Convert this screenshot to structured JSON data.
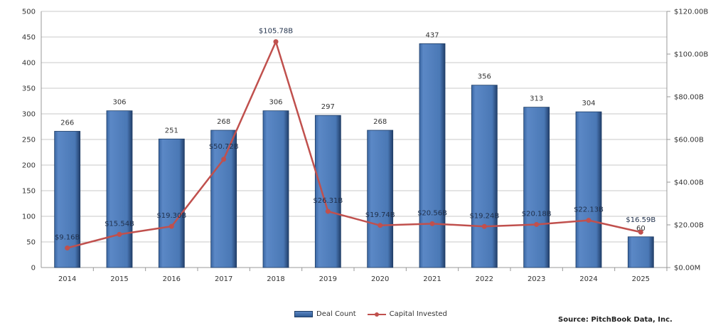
{
  "chart_data": {
    "type": "bar+line",
    "categories": [
      "2014",
      "2015",
      "2016",
      "2017",
      "2018",
      "2019",
      "2020",
      "2021",
      "2022",
      "2023",
      "2024",
      "2025"
    ],
    "series": [
      {
        "name": "Deal Count",
        "type": "bar",
        "axis": "left",
        "values": [
          266,
          306,
          251,
          268,
          306,
          297,
          268,
          437,
          356,
          313,
          304,
          60
        ],
        "labels": [
          "266",
          "306",
          "251",
          "268",
          "306",
          "297",
          "268",
          "437",
          "356",
          "313",
          "304",
          "60"
        ],
        "color": "#4a78b5"
      },
      {
        "name": "Capital Invested",
        "type": "line",
        "axis": "right",
        "values": [
          9.16,
          15.54,
          19.3,
          50.72,
          105.78,
          26.31,
          19.74,
          20.56,
          19.24,
          20.18,
          22.13,
          16.59
        ],
        "labels": [
          "$9.16B",
          "$15.54B",
          "$19.30B",
          "$50.72B",
          "$105.78B",
          "$26.31B",
          "$19.74B",
          "$20.56B",
          "$19.24B",
          "$20.18B",
          "$22.13B",
          "$16.59B"
        ],
        "color": "#c0504d"
      }
    ],
    "y_left": {
      "ylim": [
        0,
        500
      ],
      "ticks": [
        "0",
        "50",
        "100",
        "150",
        "200",
        "250",
        "300",
        "350",
        "400",
        "450",
        "500"
      ]
    },
    "y_right": {
      "ylim": [
        0,
        120
      ],
      "ticks": [
        "$0.00M",
        "$20.00B",
        "$40.00B",
        "$60.00B",
        "$80.00B",
        "$100.00B",
        "$120.00B"
      ]
    },
    "grid": true,
    "legend_position": "bottom"
  },
  "legend": {
    "bar": "Deal Count",
    "line": "Capital Invested"
  },
  "source": "Source: PitchBook Data, Inc."
}
